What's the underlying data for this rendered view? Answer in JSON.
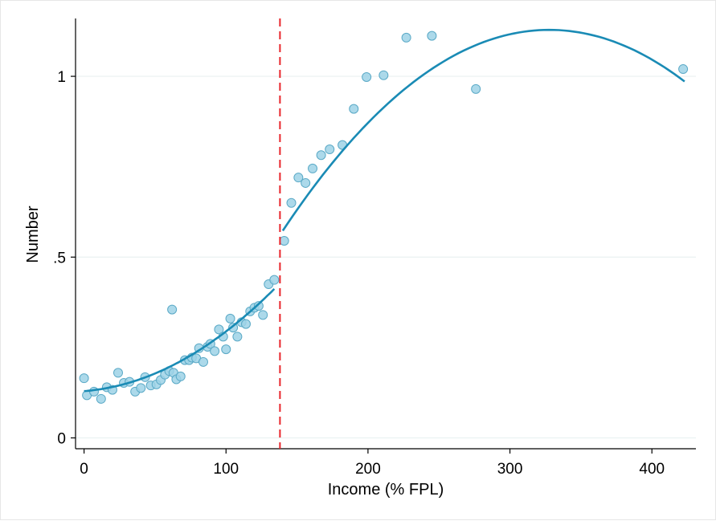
{
  "chart_data": {
    "type": "scatter",
    "title": "",
    "xlabel": "Income (% FPL)",
    "ylabel": "Number",
    "xlim": [
      -6,
      431
    ],
    "ylim": [
      -0.03,
      1.16
    ],
    "x_ticks": [
      0,
      100,
      200,
      300,
      400
    ],
    "x_tick_labels": [
      "0",
      "100",
      "200",
      "300",
      "400"
    ],
    "y_ticks": [
      0,
      0.5,
      1
    ],
    "y_tick_labels": [
      "0",
      ".5",
      "1"
    ],
    "grid": "horizontal",
    "cutoff_x": 138,
    "colors": {
      "marker_fill": "#9dd2e6",
      "marker_stroke": "#5aa9c6",
      "fit_line": "#1a8bb5",
      "cutoff_line": "#e8262c",
      "grid": "#eaf1f1"
    },
    "points": [
      [
        0,
        0.165
      ],
      [
        2,
        0.118
      ],
      [
        7,
        0.128
      ],
      [
        12,
        0.108
      ],
      [
        16,
        0.14
      ],
      [
        20,
        0.133
      ],
      [
        24,
        0.18
      ],
      [
        28,
        0.152
      ],
      [
        32,
        0.155
      ],
      [
        36,
        0.128
      ],
      [
        40,
        0.138
      ],
      [
        43,
        0.168
      ],
      [
        47,
        0.145
      ],
      [
        51,
        0.148
      ],
      [
        54,
        0.16
      ],
      [
        57,
        0.175
      ],
      [
        60,
        0.185
      ],
      [
        62,
        0.355
      ],
      [
        63,
        0.18
      ],
      [
        65,
        0.162
      ],
      [
        68,
        0.17
      ],
      [
        71,
        0.215
      ],
      [
        74,
        0.215
      ],
      [
        76,
        0.222
      ],
      [
        79,
        0.22
      ],
      [
        81,
        0.248
      ],
      [
        84,
        0.21
      ],
      [
        87,
        0.252
      ],
      [
        89,
        0.26
      ],
      [
        92,
        0.24
      ],
      [
        95,
        0.3
      ],
      [
        98,
        0.28
      ],
      [
        100,
        0.245
      ],
      [
        103,
        0.33
      ],
      [
        105,
        0.305
      ],
      [
        108,
        0.28
      ],
      [
        111,
        0.32
      ],
      [
        114,
        0.315
      ],
      [
        117,
        0.35
      ],
      [
        120,
        0.36
      ],
      [
        123,
        0.365
      ],
      [
        126,
        0.34
      ],
      [
        130,
        0.425
      ],
      [
        134,
        0.437
      ],
      [
        141,
        0.545
      ],
      [
        146,
        0.65
      ],
      [
        151,
        0.72
      ],
      [
        156,
        0.705
      ],
      [
        161,
        0.745
      ],
      [
        167,
        0.782
      ],
      [
        173,
        0.798
      ],
      [
        182,
        0.81
      ],
      [
        190,
        0.91
      ],
      [
        199,
        0.998
      ],
      [
        211,
        1.003
      ],
      [
        227,
        1.107
      ],
      [
        245,
        1.112
      ],
      [
        276,
        0.965
      ],
      [
        422,
        1.02
      ]
    ],
    "fit_segments": [
      {
        "x_range": [
          0,
          134
        ],
        "coefficients": [
          0.1294,
          0.0003,
          1.35e-05
        ]
      },
      {
        "x_range": [
          140,
          423
        ],
        "coefficients": [
          -0.5637,
          0.010325,
          -1.575e-05
        ]
      }
    ]
  }
}
